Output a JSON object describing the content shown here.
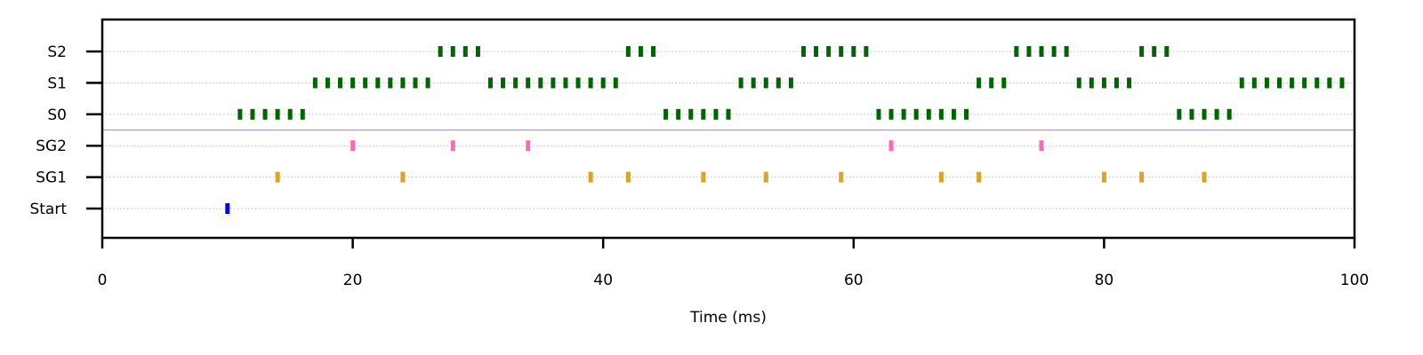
{
  "chart_data": {
    "type": "scatter",
    "title": "",
    "xlabel": "Time (ms)",
    "ylabel": "",
    "xlim": [
      0,
      100
    ],
    "grid": true,
    "legend": "none",
    "x_ticks": [
      "0",
      "20",
      "40",
      "60",
      "80",
      "100"
    ],
    "x_tick_values": [
      0,
      20,
      40,
      60,
      80,
      100
    ],
    "categories": [
      "Start",
      "SG1",
      "SG2",
      "S0",
      "S1",
      "S2"
    ],
    "separator_between": [
      "SG2",
      "S0"
    ],
    "series": [
      {
        "category": "Start",
        "color": "#0000ff",
        "x": [
          10
        ]
      },
      {
        "category": "SG1",
        "color": "#daa520",
        "x": [
          14,
          24,
          39,
          42,
          48,
          53,
          59,
          67,
          70,
          80,
          83,
          88
        ]
      },
      {
        "category": "SG2",
        "color": "#ff69b4",
        "x": [
          20,
          28,
          34,
          63,
          75
        ]
      },
      {
        "category": "S0",
        "color": "#006400",
        "x": [
          11,
          12,
          13,
          14,
          15,
          16,
          45,
          46,
          47,
          48,
          49,
          50,
          62,
          63,
          64,
          65,
          66,
          67,
          68,
          69,
          86,
          87,
          88,
          89,
          90
        ]
      },
      {
        "category": "S1",
        "color": "#006400",
        "x": [
          17,
          18,
          19,
          20,
          21,
          22,
          23,
          24,
          25,
          26,
          31,
          32,
          33,
          34,
          35,
          36,
          37,
          38,
          39,
          40,
          41,
          51,
          52,
          53,
          54,
          55,
          70,
          71,
          72,
          78,
          79,
          80,
          81,
          82,
          91,
          92,
          93,
          94,
          95,
          96,
          97,
          98,
          99
        ]
      },
      {
        "category": "S2",
        "color": "#006400",
        "x": [
          27,
          28,
          29,
          30,
          42,
          43,
          44,
          56,
          57,
          58,
          59,
          60,
          61,
          73,
          74,
          75,
          76,
          77,
          83,
          84,
          85
        ]
      }
    ]
  }
}
